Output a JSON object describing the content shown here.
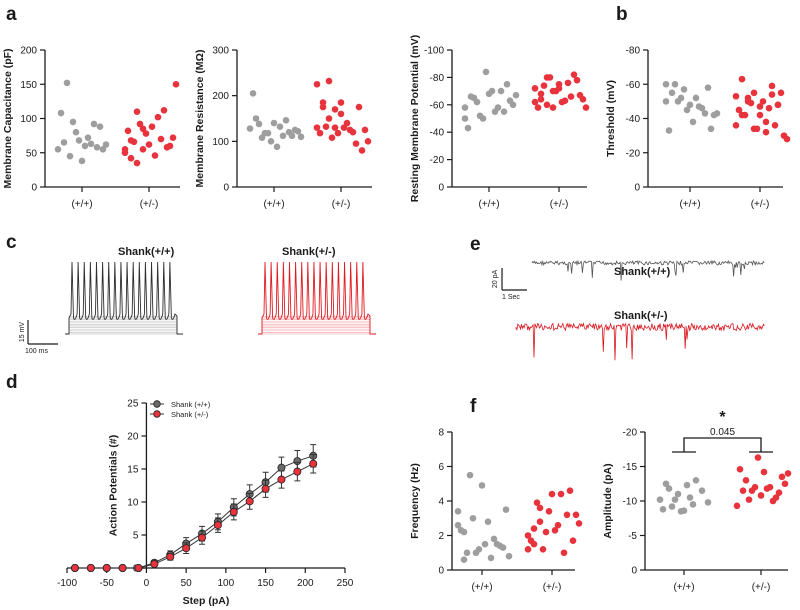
{
  "colors": {
    "wt": "#9e9e9e",
    "het": "#e8323c",
    "wt_line": "#3a3a3a",
    "het_line": "#d9171f",
    "axis": "#1a1a1a"
  },
  "panel_letters": {
    "a": "a",
    "b": "b",
    "c": "c",
    "d": "d",
    "e": "e",
    "f": "f"
  },
  "groups": {
    "wt": "(+/+)",
    "het": "(+/-)"
  },
  "traces": {
    "c_wt_title": "Shank(+/+)",
    "c_het_title": "Shank(+/-)",
    "c_scale_y": "15 mV",
    "c_scale_x": "100 ms",
    "e_wt_title": "Shank(+/+)",
    "e_het_title": "Shank(+/-)",
    "e_scale_y": "20 pA",
    "e_scale_x": "1 Sec"
  },
  "chart_data": [
    {
      "id": "capacitance",
      "type": "scatter",
      "ylabel": "Membrane Capacitance (pF)",
      "ylim": [
        0,
        200
      ],
      "yticks": [
        0,
        50,
        100,
        150,
        200
      ],
      "categories": [
        "(+/+)",
        "(+/-)"
      ],
      "series": [
        {
          "name": "(+/+)",
          "values": [
            55,
            65,
            45,
            80,
            38,
            72,
            92,
            88,
            62,
            108,
            152,
            95,
            68,
            60,
            63,
            58,
            55
          ]
        },
        {
          "name": "(+/-)",
          "values": [
            50,
            42,
            35,
            55,
            62,
            46,
            70,
            58,
            72,
            82,
            66,
            92,
            78,
            88,
            102,
            112,
            60,
            150,
            55,
            68,
            110,
            85
          ]
        }
      ]
    },
    {
      "id": "resistance",
      "type": "scatter",
      "ylabel": "Membrane Resistance (MΩ)",
      "ylim": [
        0,
        300
      ],
      "yticks": [
        0,
        100,
        200,
        300
      ],
      "categories": [
        "(+/+)",
        "(+/-)"
      ],
      "series": [
        {
          "name": "(+/+)",
          "values": [
            128,
            150,
            108,
            118,
            140,
            132,
            146,
            112,
            122,
            205,
            138,
            118,
            100,
            88,
            112,
            120,
            125,
            110
          ]
        },
        {
          "name": "(+/-)",
          "values": [
            225,
            185,
            150,
            130,
            160,
            140,
            120,
            175,
            125,
            118,
            132,
            108,
            118,
            130,
            125,
            95,
            80,
            100,
            130,
            175,
            232,
            170,
            185
          ]
        }
      ]
    },
    {
      "id": "rmp",
      "type": "scatter",
      "ylabel": "Resting Membrane Potential (mV)",
      "ylim": [
        0,
        -100
      ],
      "yticks": [
        0,
        -20,
        -40,
        -60,
        -80,
        -100
      ],
      "categories": [
        "(+/+)",
        "(+/-)"
      ],
      "series": [
        {
          "name": "(+/+)",
          "values": [
            -58,
            -66,
            -62,
            -50,
            -68,
            -55,
            -70,
            -75,
            -60,
            -43,
            -65,
            -52,
            -84,
            -70,
            -58,
            -55,
            -63,
            -67,
            -50
          ]
        },
        {
          "name": "(+/-)",
          "values": [
            -62,
            -68,
            -60,
            -58,
            -72,
            -63,
            -66,
            -78,
            -64,
            -58,
            -74,
            -80,
            -70,
            -62,
            -76,
            -82,
            -67,
            -58,
            -72,
            -64,
            -80,
            -70,
            -75
          ]
        }
      ]
    },
    {
      "id": "threshold",
      "type": "scatter",
      "ylabel": "Threshold (mV)",
      "ylim": [
        0,
        -80
      ],
      "yticks": [
        0,
        -20,
        -40,
        -60,
        -80
      ],
      "categories": [
        "(+/+)",
        "(+/-)"
      ],
      "series": [
        {
          "name": "(+/+)",
          "values": [
            -60,
            -55,
            -50,
            -57,
            -48,
            -52,
            -46,
            -58,
            -42,
            -33,
            -60,
            -52,
            -45,
            -38,
            -47,
            -43,
            -34,
            -43,
            -50
          ]
        },
        {
          "name": "(+/-)",
          "values": [
            -36,
            -42,
            -50,
            -55,
            -47,
            -38,
            -59,
            -48,
            -30,
            -45,
            -42,
            -49,
            -34,
            -50,
            -46,
            -36,
            -55,
            -28,
            -53,
            -63,
            -52,
            -34,
            -42,
            -32,
            -54,
            -48
          ]
        }
      ]
    },
    {
      "id": "ap_count",
      "type": "line",
      "xlabel": "Step (pA)",
      "ylabel": "Action Potentials (#)",
      "xlim": [
        -100,
        250
      ],
      "ylim": [
        0,
        25
      ],
      "xticks": [
        -100,
        -50,
        0,
        50,
        100,
        150,
        200,
        250
      ],
      "yticks": [
        0,
        5,
        10,
        15,
        20,
        25
      ],
      "x": [
        -90,
        -70,
        -50,
        -30,
        -10,
        10,
        30,
        50,
        70,
        90,
        110,
        130,
        150,
        170,
        190,
        210
      ],
      "series": [
        {
          "name": "Shank (+/+)",
          "values": [
            0,
            0,
            0,
            0,
            0,
            0.8,
            2.0,
            3.7,
            5.2,
            7.0,
            9.2,
            11.2,
            13.0,
            15.2,
            16.2,
            17.0
          ],
          "errors": [
            0,
            0,
            0,
            0,
            0,
            0.3,
            0.6,
            0.9,
            1.1,
            1.2,
            1.3,
            1.4,
            1.5,
            1.6,
            1.6,
            1.7
          ]
        },
        {
          "name": "Shank (+/-)",
          "values": [
            0,
            0,
            0,
            0,
            0,
            0.6,
            1.7,
            3.0,
            4.6,
            6.5,
            8.5,
            10.1,
            12.0,
            13.4,
            14.6,
            15.8
          ],
          "errors": [
            0,
            0,
            0,
            0,
            0,
            0.2,
            0.5,
            0.8,
            1.0,
            1.1,
            1.2,
            1.2,
            1.3,
            1.3,
            1.4,
            1.4
          ]
        }
      ]
    },
    {
      "id": "frequency",
      "type": "scatter",
      "ylabel": "Frequency (Hz)",
      "ylim": [
        0,
        8
      ],
      "yticks": [
        0,
        2,
        4,
        6,
        8
      ],
      "categories": [
        "(+/+)",
        "(+/-)"
      ],
      "series": [
        {
          "name": "(+/+)",
          "values": [
            2.6,
            2.2,
            5.5,
            1.0,
            4.9,
            2.8,
            1.8,
            1.4,
            3.5,
            2.3,
            1.0,
            3.0,
            1.2,
            1.5,
            0.7,
            1.5,
            1.3,
            0.8,
            3.4,
            0.6
          ]
        },
        {
          "name": "(+/-)",
          "values": [
            1.2,
            2.4,
            3.6,
            2.2,
            4.4,
            2.6,
            1.0,
            4.6,
            3.2,
            1.7,
            3.9,
            1.2,
            3.4,
            2.3,
            4.4,
            3.2,
            1.7,
            2.7,
            2.0,
            1.5,
            2.8
          ]
        }
      ]
    },
    {
      "id": "amplitude",
      "type": "scatter",
      "ylabel": "Amplitude (pA)",
      "ylim": [
        0,
        -20
      ],
      "yticks": [
        0,
        -5,
        -10,
        -15,
        -20
      ],
      "categories": [
        "(+/+)",
        "(+/-)"
      ],
      "significance": {
        "star": "*",
        "p": "0.045"
      },
      "series": [
        {
          "name": "(+/+)",
          "values": [
            -10.2,
            -12.5,
            -9.2,
            -11.0,
            -8.6,
            -10.5,
            -13.0,
            -11.5,
            -9.8,
            -8.8,
            -11.8,
            -10.2,
            -8.5,
            -12.3,
            -9.5
          ]
        },
        {
          "name": "(+/-)",
          "values": [
            -9.3,
            -11.5,
            -10.2,
            -12.0,
            -10.8,
            -11.8,
            -10.0,
            -11.2,
            -12.5,
            -14.6,
            -13.0,
            -11.5,
            -16.3,
            -14.2,
            -12.0,
            -10.5,
            -13.5,
            -14.0
          ]
        }
      ]
    }
  ]
}
